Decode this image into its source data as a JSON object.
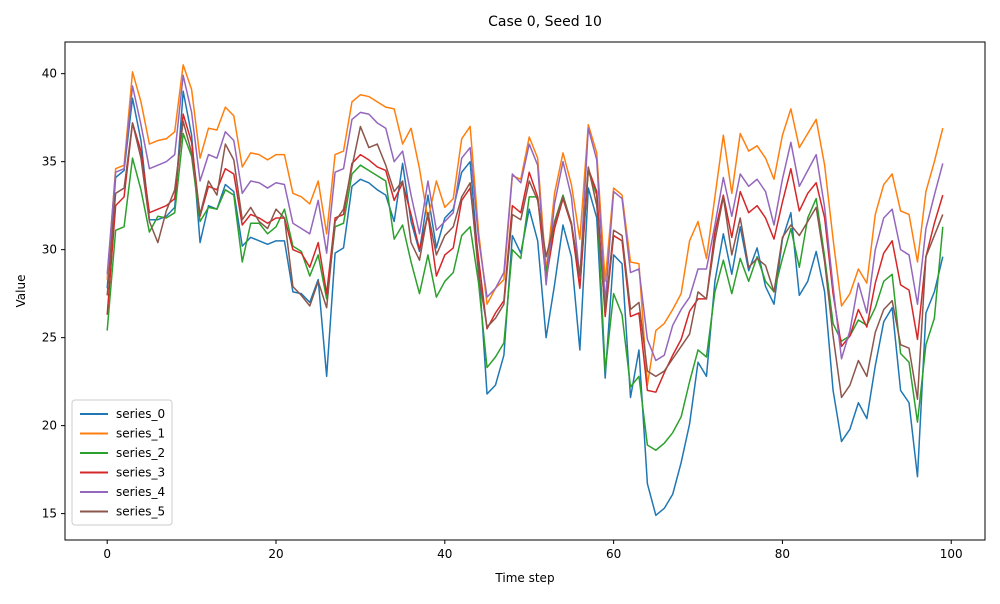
{
  "chart_data": {
    "type": "line",
    "title": "Case 0, Seed 10",
    "xlabel": "Time step",
    "ylabel": "Value",
    "xlim": [
      -5,
      104
    ],
    "ylim": [
      13.5,
      41.8
    ],
    "xticks": [
      0,
      20,
      40,
      60,
      80,
      100
    ],
    "yticks": [
      15,
      20,
      25,
      30,
      35,
      40
    ],
    "grid": false,
    "legend_position": "lower-left",
    "x": [
      0,
      1,
      2,
      3,
      4,
      5,
      6,
      7,
      8,
      9,
      10,
      11,
      12,
      13,
      14,
      15,
      16,
      17,
      18,
      19,
      20,
      21,
      22,
      23,
      24,
      25,
      26,
      27,
      28,
      29,
      30,
      31,
      32,
      33,
      34,
      35,
      36,
      37,
      38,
      39,
      40,
      41,
      42,
      43,
      44,
      45,
      46,
      47,
      48,
      49,
      50,
      51,
      52,
      53,
      54,
      55,
      56,
      57,
      58,
      59,
      60,
      61,
      62,
      63,
      64,
      65,
      66,
      67,
      68,
      69,
      70,
      71,
      72,
      73,
      74,
      75,
      76,
      77,
      78,
      79,
      80,
      81,
      82,
      83,
      84,
      85,
      86,
      87,
      88,
      89,
      90,
      91,
      92,
      93,
      94,
      95,
      96,
      97,
      98,
      99
    ],
    "series": [
      {
        "name": "series_0",
        "color": "#1f77b4",
        "values": [
          27.8,
          34.1,
          34.5,
          38.6,
          36.2,
          31.7,
          31.7,
          31.9,
          32.4,
          39.0,
          36.5,
          30.4,
          32.5,
          32.3,
          33.7,
          33.3,
          30.2,
          30.7,
          30.5,
          30.3,
          30.5,
          30.5,
          27.6,
          27.5,
          27.0,
          28.3,
          22.8,
          29.8,
          30.1,
          33.6,
          34.0,
          33.8,
          33.4,
          33.1,
          31.6,
          34.9,
          31.6,
          29.9,
          33.1,
          30.1,
          31.8,
          32.3,
          34.4,
          35.0,
          29.1,
          21.8,
          22.3,
          24.0,
          30.8,
          29.8,
          32.3,
          30.5,
          25.0,
          28.0,
          31.4,
          29.6,
          24.3,
          33.5,
          31.8,
          22.7,
          29.7,
          29.2,
          21.6,
          24.3,
          16.7,
          14.9,
          15.3,
          16.1,
          17.9,
          20.1,
          23.6,
          22.8,
          28.2,
          30.9,
          28.6,
          31.3,
          28.8,
          30.1,
          27.9,
          26.9,
          30.6,
          32.1,
          27.4,
          28.2,
          29.9,
          27.6,
          22.0,
          19.1,
          19.8,
          21.3,
          20.4,
          23.4,
          25.9,
          26.7,
          22.0,
          21.3,
          17.1,
          26.4,
          27.6,
          29.6
        ]
      },
      {
        "name": "series_1",
        "color": "#ff7f0e",
        "values": [
          28.3,
          34.6,
          34.8,
          40.1,
          38.4,
          36.0,
          36.2,
          36.3,
          36.7,
          40.5,
          39.1,
          35.2,
          36.9,
          36.8,
          38.1,
          37.6,
          34.7,
          35.5,
          35.4,
          35.1,
          35.4,
          35.4,
          33.2,
          33.0,
          32.6,
          33.9,
          30.9,
          35.4,
          35.6,
          38.4,
          38.8,
          38.7,
          38.4,
          38.1,
          38.0,
          36.0,
          36.9,
          34.6,
          31.7,
          33.9,
          32.4,
          32.9,
          36.3,
          37.0,
          31.0,
          26.9,
          27.8,
          28.3,
          34.2,
          34.0,
          36.4,
          35.2,
          28.8,
          33.2,
          35.5,
          33.7,
          30.6,
          37.1,
          35.5,
          28.2,
          33.5,
          33.1,
          29.3,
          29.2,
          22.3,
          25.4,
          25.8,
          26.6,
          27.5,
          30.5,
          31.6,
          29.5,
          33.0,
          36.5,
          33.2,
          36.6,
          35.6,
          35.9,
          35.2,
          34.0,
          36.5,
          38.0,
          35.8,
          36.6,
          37.4,
          34.8,
          30.6,
          26.8,
          27.5,
          28.9,
          28.1,
          32.0,
          33.7,
          34.3,
          32.2,
          32.0,
          29.3,
          33.3,
          35.0,
          36.9
        ]
      },
      {
        "name": "series_2",
        "color": "#2ca02c",
        "values": [
          25.4,
          31.1,
          31.3,
          35.2,
          33.4,
          31.0,
          31.9,
          31.8,
          32.1,
          36.6,
          35.3,
          31.6,
          32.4,
          32.3,
          33.4,
          33.1,
          29.3,
          31.5,
          31.5,
          30.9,
          31.3,
          32.3,
          30.2,
          29.9,
          28.5,
          29.7,
          27.2,
          31.3,
          31.5,
          34.3,
          34.8,
          34.5,
          34.2,
          33.9,
          30.6,
          31.4,
          29.3,
          27.5,
          29.7,
          27.3,
          28.2,
          28.7,
          30.8,
          31.3,
          28.1,
          23.3,
          23.9,
          24.7,
          30.0,
          29.5,
          33.0,
          33.0,
          28.7,
          31.6,
          33.1,
          31.5,
          27.9,
          34.5,
          33.1,
          23.1,
          27.5,
          26.3,
          22.2,
          22.8,
          18.9,
          18.6,
          19.0,
          19.6,
          20.5,
          22.5,
          24.3,
          23.9,
          27.6,
          29.4,
          27.5,
          29.5,
          28.2,
          29.6,
          28.2,
          27.6,
          29.5,
          31.2,
          29.0,
          31.8,
          32.9,
          29.6,
          25.8,
          24.8,
          25.1,
          26.0,
          25.7,
          26.7,
          28.2,
          28.6,
          24.1,
          23.6,
          20.2,
          24.6,
          26.1,
          31.3
        ]
      },
      {
        "name": "series_3",
        "color": "#d62728",
        "values": [
          26.3,
          32.5,
          33.0,
          37.2,
          35.6,
          32.1,
          32.3,
          32.5,
          32.9,
          37.7,
          36.1,
          31.9,
          33.6,
          33.4,
          34.6,
          34.3,
          31.4,
          32.0,
          31.8,
          31.5,
          31.8,
          31.8,
          30.0,
          29.8,
          29.0,
          30.4,
          27.5,
          31.8,
          32.0,
          34.9,
          35.4,
          35.1,
          34.7,
          34.5,
          32.8,
          33.8,
          32.0,
          30.0,
          32.0,
          28.5,
          29.7,
          30.1,
          32.8,
          33.5,
          29.5,
          25.5,
          26.4,
          27.1,
          32.5,
          32.1,
          34.4,
          33.0,
          28.3,
          31.2,
          32.9,
          31.4,
          27.8,
          34.6,
          33.3,
          26.2,
          30.8,
          30.5,
          26.2,
          26.4,
          22.0,
          21.9,
          23.0,
          24.0,
          24.9,
          26.5,
          27.2,
          27.2,
          31.0,
          33.1,
          30.7,
          33.3,
          32.1,
          32.5,
          31.8,
          30.6,
          32.7,
          34.6,
          32.2,
          33.2,
          33.8,
          31.8,
          27.5,
          24.5,
          25.1,
          26.6,
          25.6,
          28.1,
          29.8,
          30.5,
          28.0,
          27.7,
          24.9,
          29.6,
          31.5,
          33.1
        ]
      },
      {
        "name": "series_4",
        "color": "#9467bd",
        "values": [
          28.6,
          34.4,
          34.6,
          39.3,
          37.1,
          34.6,
          34.8,
          35.0,
          35.4,
          39.9,
          37.8,
          33.9,
          35.4,
          35.2,
          36.7,
          36.2,
          33.2,
          33.9,
          33.8,
          33.5,
          33.8,
          33.7,
          31.5,
          31.2,
          30.9,
          32.8,
          29.8,
          34.4,
          34.6,
          37.4,
          37.8,
          37.7,
          37.2,
          36.9,
          35.0,
          35.6,
          33.1,
          30.9,
          33.9,
          31.1,
          31.6,
          32.1,
          35.2,
          35.8,
          30.6,
          27.3,
          27.8,
          28.7,
          34.3,
          33.8,
          36.0,
          34.8,
          28.0,
          32.6,
          35.0,
          33.0,
          28.4,
          36.9,
          35.1,
          27.0,
          33.3,
          32.9,
          28.7,
          28.9,
          24.9,
          23.7,
          24.0,
          25.7,
          26.6,
          27.3,
          28.9,
          28.9,
          31.4,
          34.1,
          31.9,
          34.3,
          33.6,
          34.0,
          33.3,
          31.4,
          34.0,
          36.1,
          33.6,
          34.5,
          35.4,
          32.4,
          27.9,
          23.8,
          25.4,
          28.1,
          26.4,
          30.0,
          31.8,
          32.3,
          30.0,
          29.7,
          26.9,
          31.2,
          33.1,
          34.9
        ]
      },
      {
        "name": "series_5",
        "color": "#8c564b",
        "values": [
          27.4,
          33.2,
          33.5,
          37.2,
          35.2,
          31.6,
          30.4,
          32.2,
          33.4,
          37.3,
          35.5,
          32.0,
          33.9,
          33.1,
          36.0,
          35.1,
          31.7,
          32.4,
          31.6,
          31.2,
          32.3,
          31.8,
          27.9,
          27.4,
          26.8,
          28.2,
          26.7,
          31.6,
          32.3,
          34.7,
          37.0,
          35.8,
          36.0,
          34.8,
          33.3,
          33.9,
          30.4,
          29.4,
          32.1,
          29.7,
          30.8,
          31.3,
          33.0,
          33.8,
          28.6,
          25.6,
          26.1,
          26.9,
          32.0,
          31.7,
          33.9,
          32.8,
          29.6,
          31.5,
          33.0,
          31.5,
          28.5,
          34.7,
          32.5,
          26.5,
          31.1,
          30.8,
          26.6,
          27.0,
          23.1,
          22.8,
          23.1,
          23.8,
          24.5,
          25.2,
          27.6,
          27.2,
          30.5,
          33.0,
          29.7,
          31.8,
          29.0,
          29.5,
          29.1,
          27.6,
          30.7,
          31.4,
          30.8,
          31.6,
          32.4,
          29.3,
          25.1,
          21.6,
          22.3,
          23.7,
          22.8,
          25.3,
          26.6,
          27.1,
          24.6,
          24.4,
          21.5,
          29.6,
          30.8,
          32.0
        ]
      }
    ]
  }
}
